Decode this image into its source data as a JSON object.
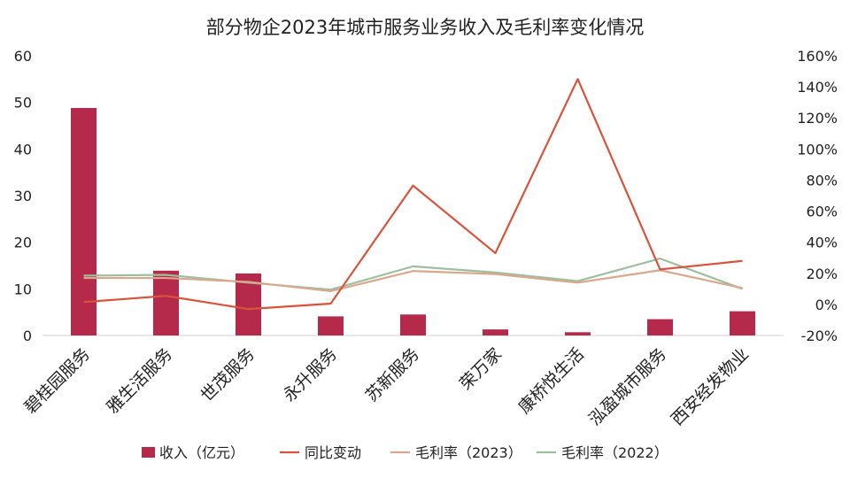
{
  "chart_data": {
    "type": "bar+line",
    "title": "部分物企2023年城市服务业务收入及毛利率变化情况",
    "categories": [
      "碧桂园服务",
      "雅生活服务",
      "世茂服务",
      "永升服务",
      "苏新服务",
      "荣万家",
      "康桥悦生活",
      "泓盈城市服务",
      "西安经发物业"
    ],
    "left_axis": {
      "min": 0,
      "max": 60,
      "step": 10,
      "ticks": [
        "0",
        "10",
        "20",
        "30",
        "40",
        "50",
        "60"
      ]
    },
    "right_axis": {
      "min": -20,
      "max": 160,
      "step": 20,
      "ticks": [
        "-20%",
        "0%",
        "20%",
        "40%",
        "60%",
        "80%",
        "100%",
        "120%",
        "140%",
        "160%"
      ]
    },
    "series": [
      {
        "name": "收入（亿元）",
        "type": "bar",
        "axis": "left",
        "color": "#B5294A",
        "values": [
          48.8,
          13.9,
          13.3,
          4.1,
          4.5,
          1.3,
          0.7,
          3.5,
          5.2
        ]
      },
      {
        "name": "同比变动",
        "type": "line",
        "axis": "right",
        "color": "#D9533B",
        "values": [
          1.5,
          5.5,
          -3.0,
          0.5,
          76.5,
          33.0,
          145.0,
          22.5,
          28.0
        ]
      },
      {
        "name": "毛利率（2023）",
        "type": "line",
        "axis": "right",
        "color": "#D9A88C",
        "values": [
          17.0,
          17.0,
          14.5,
          8.5,
          21.5,
          19.5,
          14.0,
          22.0,
          10.5
        ]
      },
      {
        "name": "毛利率（2022）",
        "type": "line",
        "axis": "right",
        "color": "#9DBFA0",
        "values": [
          18.5,
          19.0,
          14.0,
          9.5,
          24.5,
          20.5,
          15.0,
          29.5,
          10.0
        ]
      }
    ],
    "legend_position": "bottom"
  }
}
